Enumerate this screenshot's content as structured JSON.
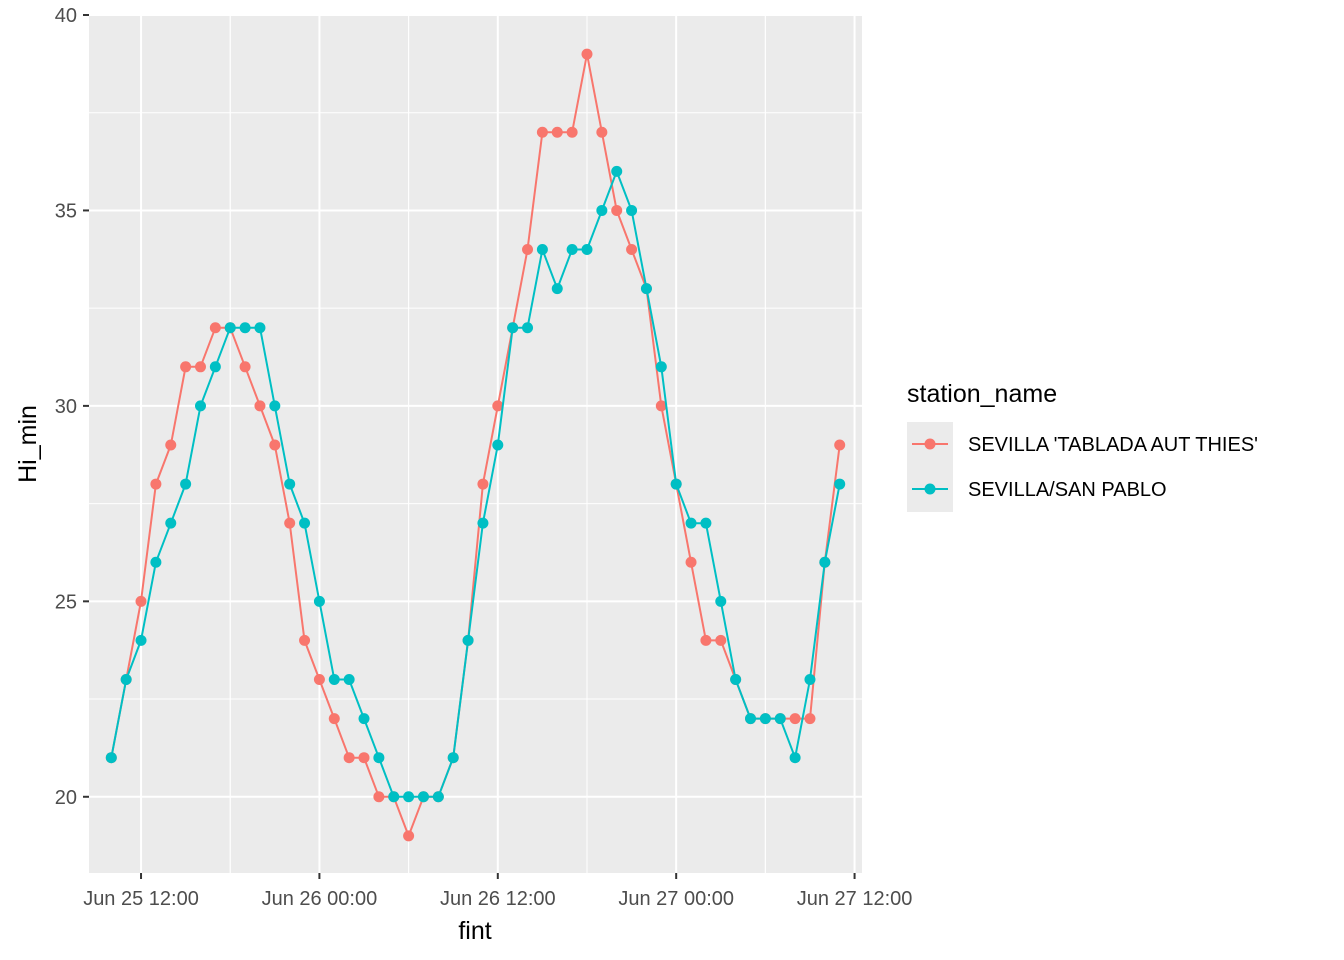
{
  "chart_data": {
    "type": "line",
    "xlabel": "fint",
    "ylabel": "Hi_min",
    "ylim": [
      18.05,
      40.0
    ],
    "xlim": [
      "2022-06-25 08:30",
      "2022-06-27 12:30"
    ],
    "x_ticks": [
      "Jun 25 12:00",
      "Jun 26 00:00",
      "Jun 26 12:00",
      "Jun 27 00:00",
      "Jun 27 12:00"
    ],
    "y_ticks": [
      20,
      25,
      30,
      35,
      40
    ],
    "grid": true,
    "legend": {
      "title": "station_name",
      "position": "right"
    },
    "x": [
      "2022-06-25 10:00",
      "2022-06-25 11:00",
      "2022-06-25 12:00",
      "2022-06-25 13:00",
      "2022-06-25 14:00",
      "2022-06-25 15:00",
      "2022-06-25 16:00",
      "2022-06-25 17:00",
      "2022-06-25 18:00",
      "2022-06-25 19:00",
      "2022-06-25 20:00",
      "2022-06-25 21:00",
      "2022-06-25 22:00",
      "2022-06-25 23:00",
      "2022-06-26 00:00",
      "2022-06-26 01:00",
      "2022-06-26 02:00",
      "2022-06-26 03:00",
      "2022-06-26 04:00",
      "2022-06-26 05:00",
      "2022-06-26 06:00",
      "2022-06-26 07:00",
      "2022-06-26 08:00",
      "2022-06-26 09:00",
      "2022-06-26 10:00",
      "2022-06-26 11:00",
      "2022-06-26 12:00",
      "2022-06-26 13:00",
      "2022-06-26 14:00",
      "2022-06-26 15:00",
      "2022-06-26 16:00",
      "2022-06-26 17:00",
      "2022-06-26 18:00",
      "2022-06-26 19:00",
      "2022-06-26 20:00",
      "2022-06-26 21:00",
      "2022-06-26 22:00",
      "2022-06-26 23:00",
      "2022-06-27 00:00",
      "2022-06-27 01:00",
      "2022-06-27 02:00",
      "2022-06-27 03:00",
      "2022-06-27 04:00",
      "2022-06-27 05:00",
      "2022-06-27 06:00",
      "2022-06-27 07:00",
      "2022-06-27 08:00",
      "2022-06-27 09:00",
      "2022-06-27 10:00",
      "2022-06-27 11:00"
    ],
    "series": [
      {
        "name": "SEVILLA 'TABLADA AUT THIES'",
        "color": "#F8766D",
        "values": [
          21,
          23,
          25,
          28,
          29,
          31,
          31,
          32,
          32,
          31,
          30,
          29,
          27,
          24,
          23,
          22,
          21,
          21,
          20,
          20,
          19,
          20,
          20,
          21,
          24,
          28,
          30,
          32,
          34,
          37,
          37,
          37,
          39,
          37,
          35,
          34,
          33,
          30,
          28,
          26,
          24,
          24,
          23,
          22,
          22,
          22,
          22,
          22,
          26,
          29
        ]
      },
      {
        "name": "SEVILLA/SAN PABLO",
        "color": "#00BFC4",
        "values": [
          21,
          23,
          24,
          26,
          27,
          28,
          30,
          31,
          32,
          32,
          32,
          30,
          28,
          27,
          25,
          23,
          23,
          22,
          21,
          20,
          20,
          20,
          20,
          21,
          24,
          27,
          29,
          32,
          32,
          34,
          33,
          34,
          34,
          35,
          36,
          35,
          33,
          31,
          28,
          27,
          27,
          25,
          23,
          22,
          22,
          22,
          21,
          23,
          26,
          28
        ]
      }
    ]
  }
}
